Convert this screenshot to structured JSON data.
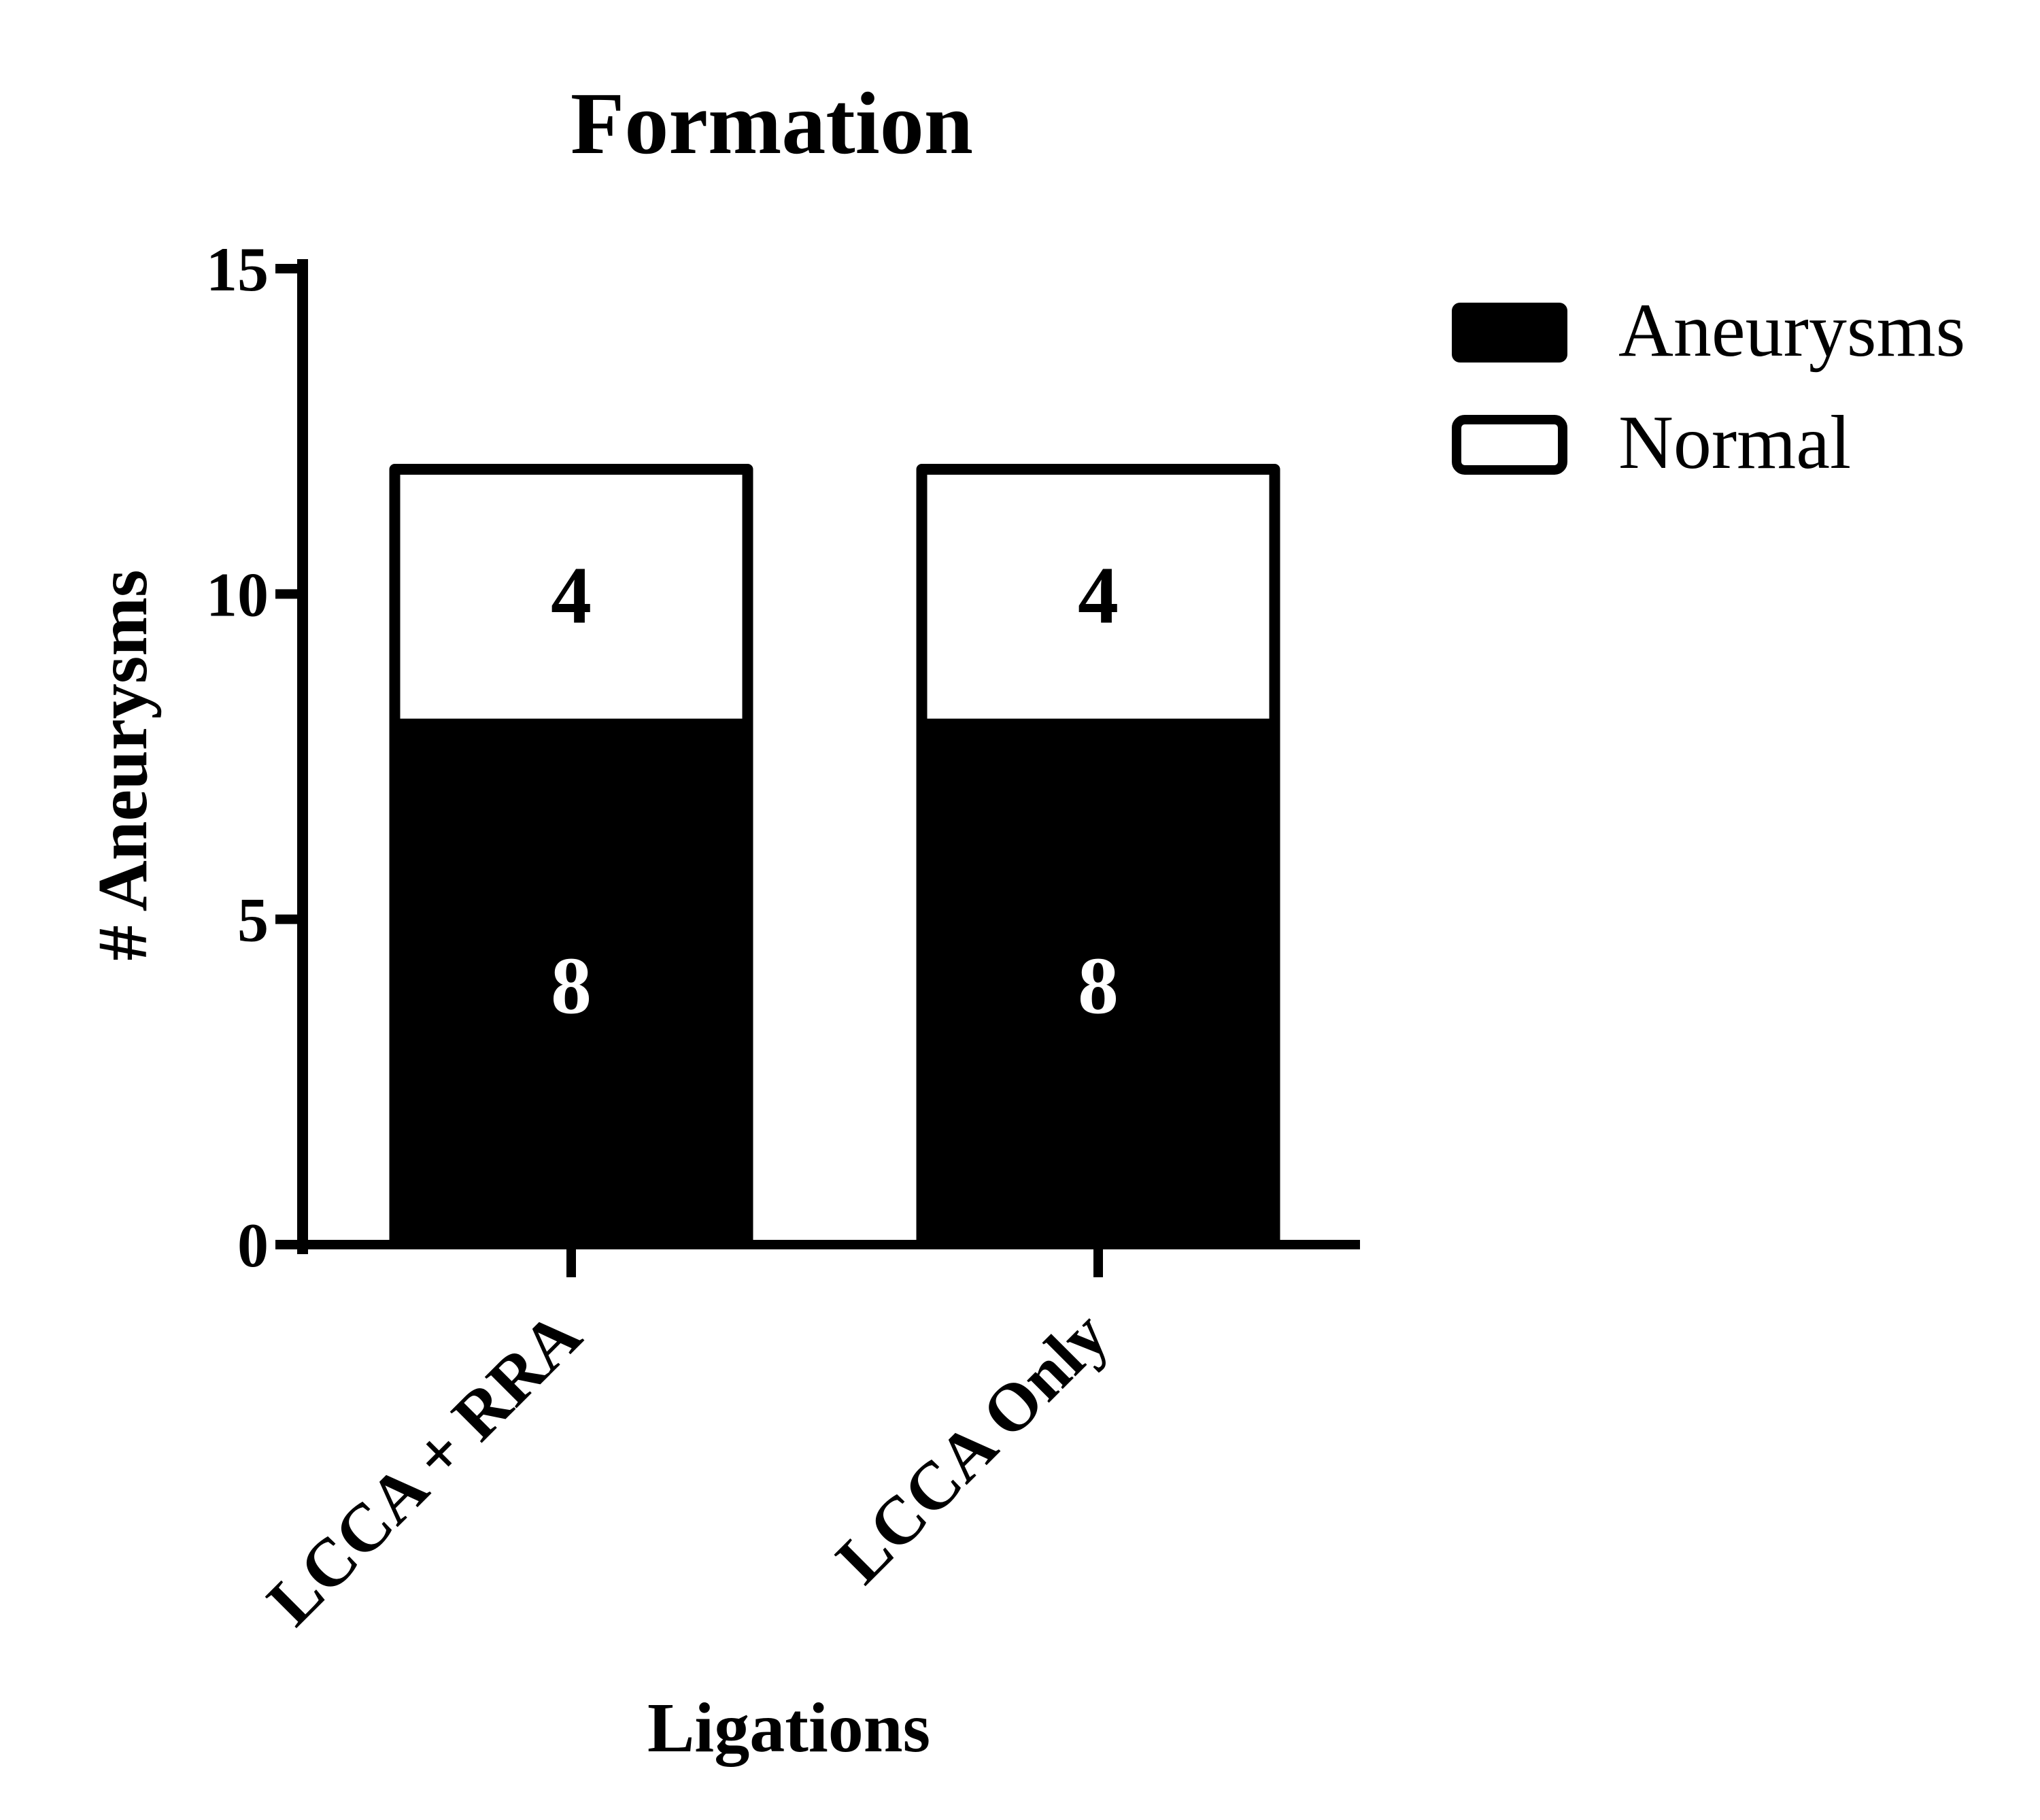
{
  "chart_data": {
    "type": "bar",
    "stacked": true,
    "title": "Formation",
    "xlabel": "Ligations",
    "ylabel": "# Aneurysms",
    "ylim": [
      0,
      15
    ],
    "yticks": [
      0,
      5,
      10,
      15
    ],
    "grid": false,
    "legend_position": "top-right",
    "categories": [
      "LCCA + RRA",
      "LCCA Only"
    ],
    "series": [
      {
        "name": "Aneurysms",
        "values": [
          8,
          8
        ],
        "color": "#000000",
        "data_labels": [
          "8",
          "8"
        ]
      },
      {
        "name": "Normal",
        "values": [
          4,
          4
        ],
        "color": "#ffffff",
        "data_labels": [
          "4",
          "4"
        ]
      }
    ]
  }
}
